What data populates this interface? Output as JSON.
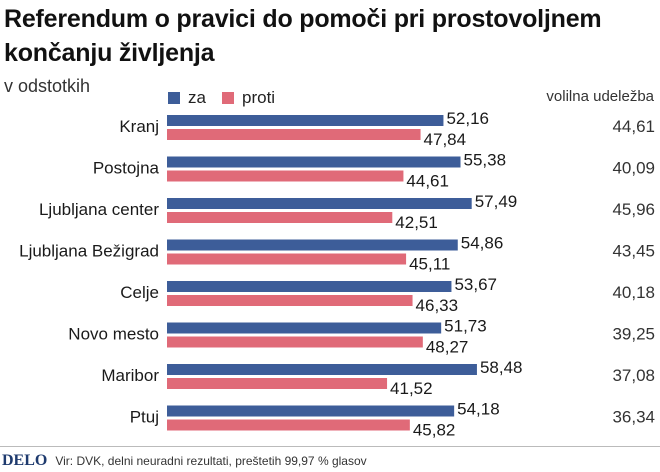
{
  "header": {
    "title": "Referendum o pravici do pomoči pri prostovoljnem končanju življenja",
    "subtitle": "v odstotkih",
    "turnout_heading": "volilna udeležba"
  },
  "colors": {
    "za": "#3d5d99",
    "proti": "#e06a78"
  },
  "footer": {
    "logo": "DELO",
    "source": "Vir: DVK, delni neuradni rezultati,  preštetih 99,97 % glasov"
  },
  "chart_data": {
    "type": "bar",
    "orientation": "horizontal",
    "categories": [
      "Kranj",
      "Postojna",
      "Ljubljana center",
      "Ljubljana Bežigrad",
      "Celje",
      "Novo mesto",
      "Maribor",
      "Ptuj"
    ],
    "series": [
      {
        "name": "za",
        "values": [
          52.16,
          55.38,
          57.49,
          54.86,
          53.67,
          51.73,
          58.48,
          54.18
        ],
        "labels": [
          "52,16",
          "55,38",
          "57,49",
          "54,86",
          "53,67",
          "51,73",
          "58,48",
          "54,18"
        ]
      },
      {
        "name": "proti",
        "values": [
          47.84,
          44.61,
          42.51,
          45.11,
          46.33,
          48.27,
          41.52,
          45.82
        ],
        "labels": [
          "47,84",
          "44,61",
          "42,51",
          "45,11",
          "46,33",
          "48,27",
          "41,52",
          "45,82"
        ]
      }
    ],
    "turnout": {
      "label": "volilna udeležba",
      "labels": [
        "44,61",
        "40,09",
        "45,96",
        "43,45",
        "40,18",
        "39,25",
        "37,08",
        "36,34"
      ]
    },
    "xlim": [
      0,
      100
    ],
    "grid": false,
    "legend": "top-left"
  }
}
